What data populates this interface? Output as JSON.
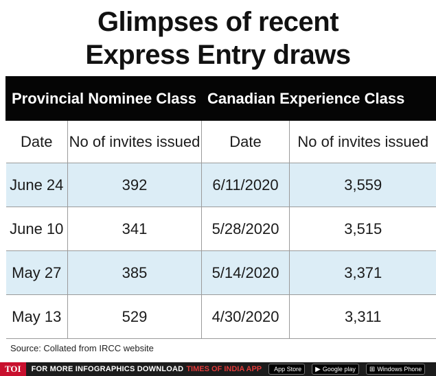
{
  "title": {
    "line1": "Glimpses of recent",
    "line2": "Express Entry draws"
  },
  "chart_data": {
    "type": "table",
    "title": "Glimpses of recent Express Entry draws",
    "groups": [
      "Provincial Nominee Class",
      "Canadian Experience Class"
    ],
    "columns": [
      "Date",
      "No of invites issued",
      "Date",
      "No of invites issued"
    ],
    "rows": [
      [
        "June 24",
        "392",
        "6/11/2020",
        "3,559"
      ],
      [
        "June 10",
        "341",
        "5/28/2020",
        "3,515"
      ],
      [
        "May 27",
        "385",
        "5/14/2020",
        "3,371"
      ],
      [
        "May 13",
        "529",
        "4/30/2020",
        "3,311"
      ]
    ]
  },
  "source": "Source: Collated from IRCC website",
  "footer": {
    "logo": "TOI",
    "text": "FOR MORE  INFOGRAPHICS DOWNLOAD",
    "app": "TIMES OF INDIA APP",
    "stores": [
      {
        "icon": "apple-icon",
        "glyph": "",
        "label": "App Store"
      },
      {
        "icon": "play-icon",
        "glyph": "▶",
        "label": "Google play"
      },
      {
        "icon": "windows-icon",
        "glyph": "⊞",
        "label": "Windows Phone"
      }
    ]
  },
  "colors": {
    "header_bg": "#050505",
    "row_shade": "#dcedf6",
    "logo_red": "#c8102e"
  }
}
